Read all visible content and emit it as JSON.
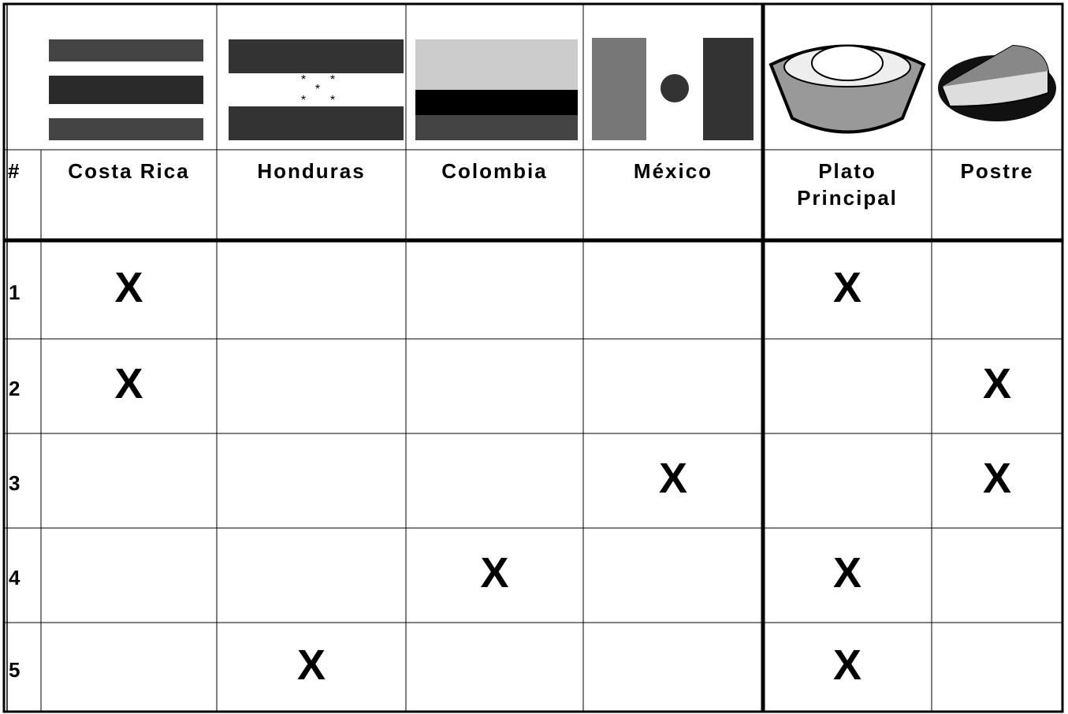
{
  "table": {
    "header": [
      "#",
      "Costa Rica",
      "Honduras",
      "Colombia",
      "México",
      "Plato Principal",
      "Postre"
    ],
    "rows": [
      [
        "1",
        "X",
        null,
        null,
        null,
        "X",
        null
      ],
      [
        "2",
        "X",
        null,
        null,
        null,
        null,
        "X"
      ],
      [
        "3",
        null,
        null,
        null,
        "X",
        null,
        "X"
      ],
      [
        "4",
        null,
        null,
        "X",
        null,
        "X",
        null
      ],
      [
        "5",
        null,
        "X",
        null,
        null,
        "X",
        null
      ]
    ]
  }
}
